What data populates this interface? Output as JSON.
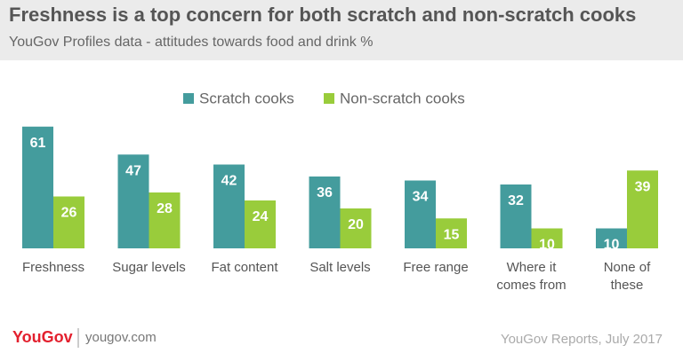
{
  "chart_data": {
    "type": "bar",
    "title": "Freshness is a top concern for both scratch and non-scratch cooks",
    "subtitle": "YouGov Profiles data - attitudes towards food and drink %",
    "categories": [
      "Freshness",
      "Sugar levels",
      "Fat content",
      "Salt levels",
      "Free range",
      "Where it comes from",
      "None of these"
    ],
    "series": [
      {
        "name": "Scratch cooks",
        "color": "#449c9d",
        "values": [
          61,
          47,
          42,
          36,
          34,
          32,
          10
        ]
      },
      {
        "name": "Non-scratch cooks",
        "color": "#99cc3b",
        "values": [
          26,
          28,
          24,
          20,
          15,
          10,
          39
        ]
      }
    ],
    "legend": "top"
  },
  "footer": {
    "logo": "YouGov",
    "site": "yougov.com",
    "source": "YouGov Reports, July 2017"
  }
}
